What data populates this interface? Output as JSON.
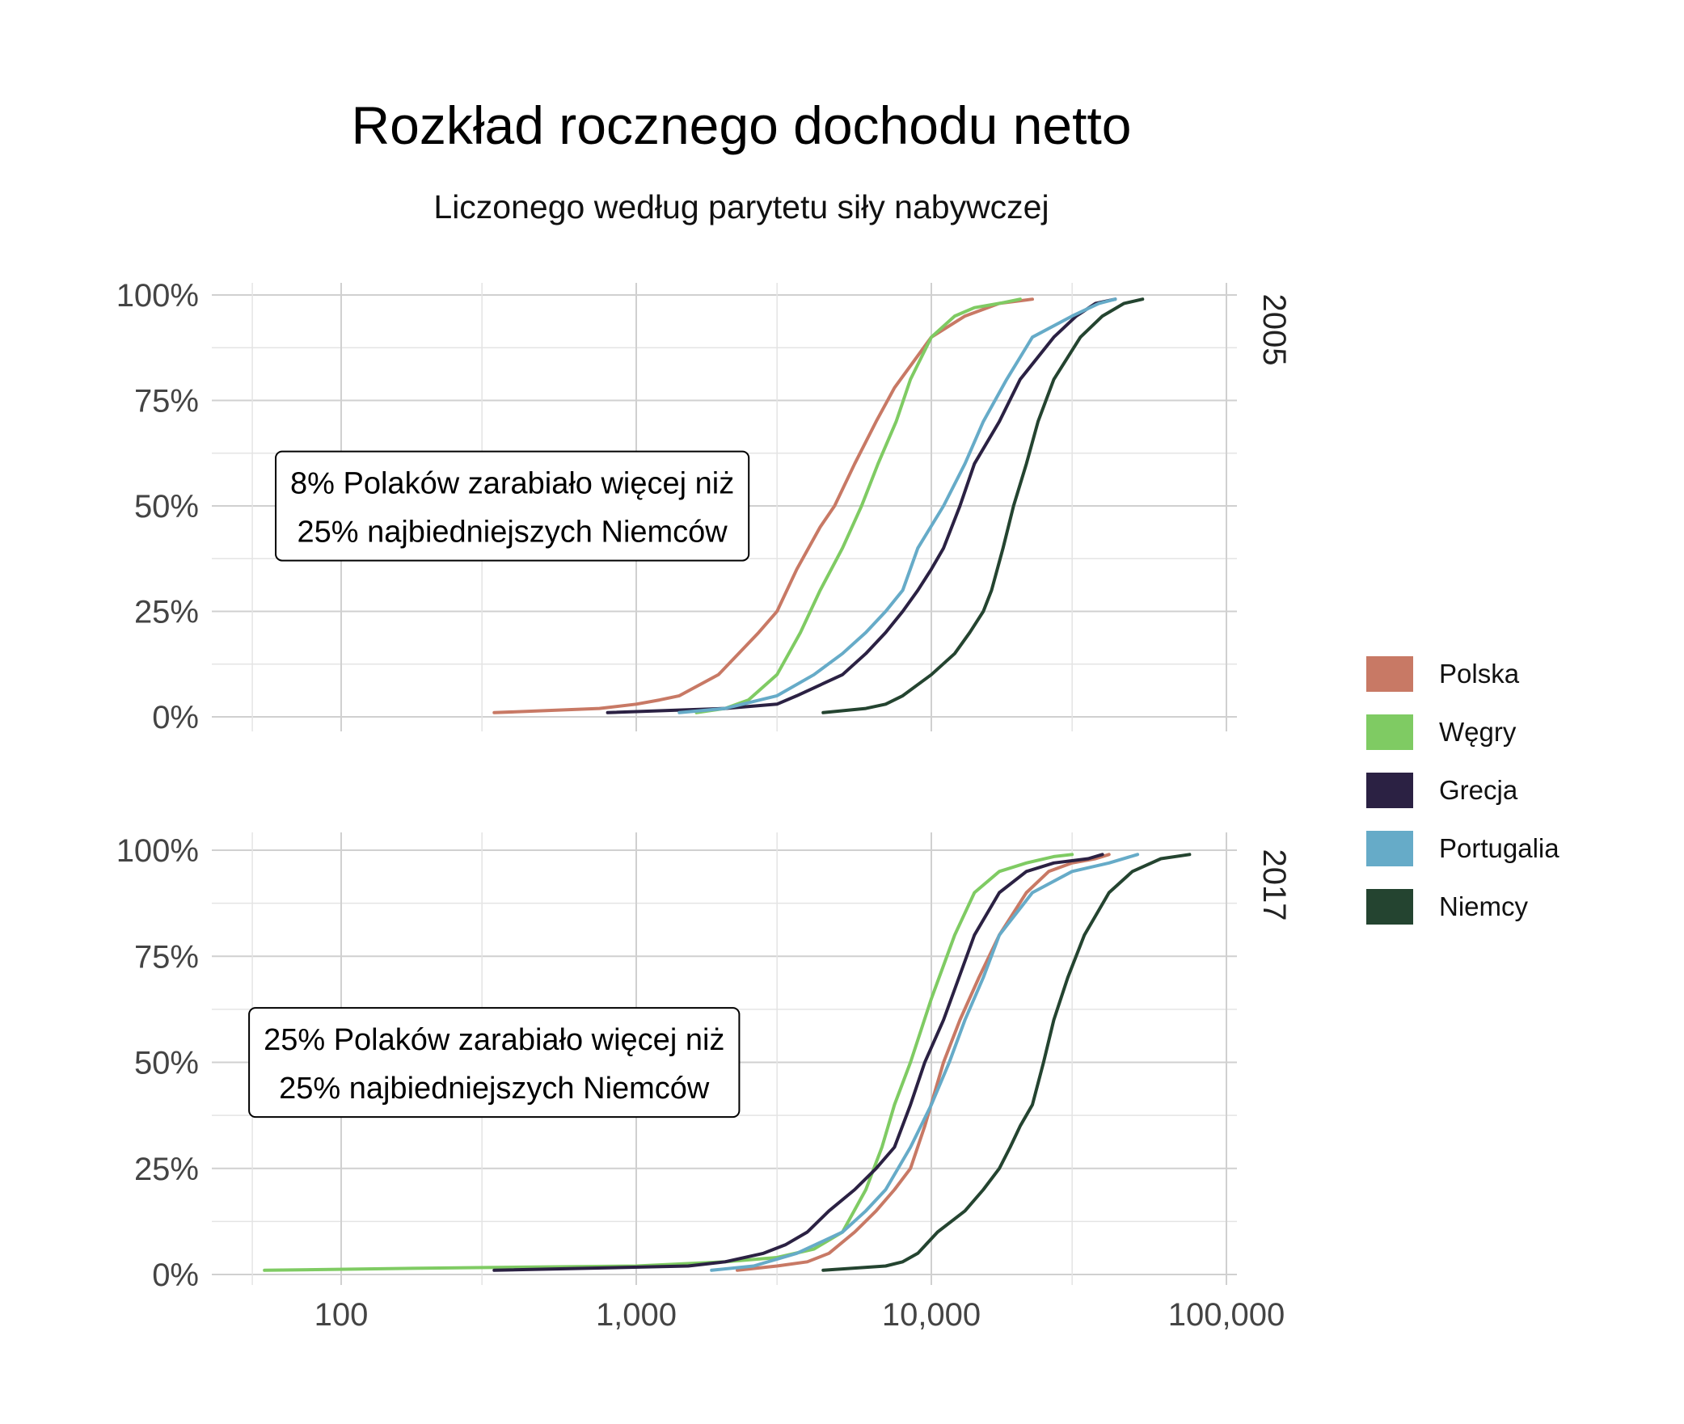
{
  "chart_data": {
    "type": "line",
    "title": "Rozkład rocznego dochodu netto",
    "subtitle": "Liczonego według parytetu siły nabywczej",
    "xlabel": "",
    "ylabel": "",
    "x_scale": "log",
    "x_range": [
      40,
      110000
    ],
    "y_range": [
      0,
      100
    ],
    "x_ticks": [
      "100",
      "1,000",
      "10,000",
      "100,000"
    ],
    "x_tick_values": [
      100,
      1000,
      10000,
      100000
    ],
    "y_ticks": [
      "0%",
      "25%",
      "50%",
      "75%",
      "100%"
    ],
    "y_tick_values": [
      0,
      25,
      50,
      75,
      100
    ],
    "grid": true,
    "legend_position": "right",
    "legend": [
      {
        "name": "Polska",
        "color": "#c87965"
      },
      {
        "name": "Węgry",
        "color": "#7fcb63"
      },
      {
        "name": "Grecja",
        "color": "#2b2143"
      },
      {
        "name": "Portugalia",
        "color": "#66abc8"
      },
      {
        "name": "Niemcy",
        "color": "#244430"
      }
    ],
    "panels": [
      {
        "label": "2005",
        "annotation": [
          "8% Polaków zarabiało więcej niż",
          "25% najbiedniejszych Niemców"
        ],
        "annotation_anchor": {
          "x": 380,
          "y": 49.5
        },
        "series": [
          {
            "name": "Polska",
            "points": [
              [
                330,
                1
              ],
              [
                750,
                2
              ],
              [
                1000,
                3
              ],
              [
                1200,
                4
              ],
              [
                1400,
                5
              ],
              [
                1900,
                10
              ],
              [
                2600,
                20
              ],
              [
                3000,
                25
              ],
              [
                3500,
                35
              ],
              [
                4200,
                45
              ],
              [
                4700,
                50
              ],
              [
                5500,
                60
              ],
              [
                6500,
                70
              ],
              [
                7500,
                78
              ],
              [
                10000,
                90
              ],
              [
                13000,
                95
              ],
              [
                17000,
                98
              ],
              [
                22000,
                99
              ]
            ]
          },
          {
            "name": "Węgry",
            "points": [
              [
                1600,
                1
              ],
              [
                2000,
                2
              ],
              [
                2400,
                4
              ],
              [
                3000,
                10
              ],
              [
                3600,
                20
              ],
              [
                4200,
                30
              ],
              [
                5000,
                40
              ],
              [
                5800,
                50
              ],
              [
                6600,
                60
              ],
              [
                7600,
                70
              ],
              [
                8500,
                80
              ],
              [
                10000,
                90
              ],
              [
                12000,
                95
              ],
              [
                14000,
                97
              ],
              [
                17000,
                98
              ],
              [
                20000,
                99
              ]
            ]
          },
          {
            "name": "Grecja",
            "points": [
              [
                800,
                1
              ],
              [
                2000,
                2
              ],
              [
                3000,
                3
              ],
              [
                3500,
                5
              ],
              [
                5000,
                10
              ],
              [
                6000,
                15
              ],
              [
                7000,
                20
              ],
              [
                8000,
                25
              ],
              [
                9000,
                30
              ],
              [
                10000,
                35
              ],
              [
                11000,
                40
              ],
              [
                12500,
                50
              ],
              [
                14000,
                60
              ],
              [
                17000,
                70
              ],
              [
                20000,
                80
              ],
              [
                26000,
                90
              ],
              [
                31000,
                95
              ],
              [
                36000,
                98
              ],
              [
                42000,
                99
              ]
            ]
          },
          {
            "name": "Portugalia",
            "points": [
              [
                1400,
                1
              ],
              [
                2000,
                2
              ],
              [
                3000,
                5
              ],
              [
                4000,
                10
              ],
              [
                5000,
                15
              ],
              [
                6000,
                20
              ],
              [
                7000,
                25
              ],
              [
                8000,
                30
              ],
              [
                9000,
                40
              ],
              [
                11000,
                50
              ],
              [
                13000,
                60
              ],
              [
                15000,
                70
              ],
              [
                18000,
                80
              ],
              [
                22000,
                90
              ],
              [
                30000,
                95
              ],
              [
                37000,
                98
              ],
              [
                42000,
                99
              ]
            ]
          },
          {
            "name": "Niemcy",
            "points": [
              [
                4300,
                1
              ],
              [
                6000,
                2
              ],
              [
                7000,
                3
              ],
              [
                8000,
                5
              ],
              [
                10000,
                10
              ],
              [
                12000,
                15
              ],
              [
                13500,
                20
              ],
              [
                15000,
                25
              ],
              [
                16000,
                30
              ],
              [
                17500,
                40
              ],
              [
                19000,
                50
              ],
              [
                21000,
                60
              ],
              [
                23000,
                70
              ],
              [
                26000,
                80
              ],
              [
                32000,
                90
              ],
              [
                38000,
                95
              ],
              [
                45000,
                98
              ],
              [
                52000,
                99
              ]
            ]
          }
        ]
      },
      {
        "label": "2017",
        "annotation": [
          "25% Polaków zarabiało więcej niż",
          "25% najbiedniejszych Niemców"
        ],
        "annotation_anchor": {
          "x": 330,
          "y": 49.5
        },
        "series": [
          {
            "name": "Polska",
            "points": [
              [
                2200,
                1
              ],
              [
                3000,
                2
              ],
              [
                3800,
                3
              ],
              [
                4500,
                5
              ],
              [
                5500,
                10
              ],
              [
                6500,
                15
              ],
              [
                7500,
                20
              ],
              [
                8500,
                25
              ],
              [
                9500,
                35
              ],
              [
                11000,
                50
              ],
              [
                12500,
                60
              ],
              [
                14500,
                70
              ],
              [
                17000,
                80
              ],
              [
                21000,
                90
              ],
              [
                25000,
                95
              ],
              [
                30000,
                97
              ],
              [
                36000,
                98
              ],
              [
                40000,
                99
              ]
            ]
          },
          {
            "name": "Węgry",
            "points": [
              [
                55,
                1
              ],
              [
                200,
                1.5
              ],
              [
                1000,
                2
              ],
              [
                2000,
                3
              ],
              [
                3000,
                4
              ],
              [
                4000,
                6
              ],
              [
                5000,
                10
              ],
              [
                6000,
                20
              ],
              [
                6800,
                30
              ],
              [
                7500,
                40
              ],
              [
                8500,
                50
              ],
              [
                10000,
                65
              ],
              [
                12000,
                80
              ],
              [
                14000,
                90
              ],
              [
                17000,
                95
              ],
              [
                21000,
                97
              ],
              [
                26000,
                98.5
              ],
              [
                30000,
                99
              ]
            ]
          },
          {
            "name": "Grecja",
            "points": [
              [
                330,
                1
              ],
              [
                1500,
                2
              ],
              [
                2000,
                3
              ],
              [
                2700,
                5
              ],
              [
                3200,
                7
              ],
              [
                3800,
                10
              ],
              [
                4500,
                15
              ],
              [
                5500,
                20
              ],
              [
                6500,
                25
              ],
              [
                7500,
                30
              ],
              [
                8500,
                40
              ],
              [
                9500,
                50
              ],
              [
                11000,
                60
              ],
              [
                14000,
                80
              ],
              [
                17000,
                90
              ],
              [
                21000,
                95
              ],
              [
                26000,
                97
              ],
              [
                34000,
                98
              ],
              [
                38000,
                99
              ]
            ]
          },
          {
            "name": "Portugalia",
            "points": [
              [
                1800,
                1
              ],
              [
                2500,
                2
              ],
              [
                3500,
                5
              ],
              [
                5000,
                10
              ],
              [
                6000,
                15
              ],
              [
                7000,
                20
              ],
              [
                8500,
                30
              ],
              [
                10000,
                40
              ],
              [
                11500,
                50
              ],
              [
                13000,
                60
              ],
              [
                15000,
                70
              ],
              [
                17000,
                80
              ],
              [
                22000,
                90
              ],
              [
                30000,
                95
              ],
              [
                40000,
                97
              ],
              [
                50000,
                99
              ]
            ]
          },
          {
            "name": "Niemcy",
            "points": [
              [
                4300,
                1
              ],
              [
                7000,
                2
              ],
              [
                8000,
                3
              ],
              [
                9000,
                5
              ],
              [
                10500,
                10
              ],
              [
                13000,
                15
              ],
              [
                15000,
                20
              ],
              [
                17000,
                25
              ],
              [
                18500,
                30
              ],
              [
                20000,
                35
              ],
              [
                22000,
                40
              ],
              [
                24000,
                50
              ],
              [
                26000,
                60
              ],
              [
                29000,
                70
              ],
              [
                33000,
                80
              ],
              [
                40000,
                90
              ],
              [
                48000,
                95
              ],
              [
                60000,
                98
              ],
              [
                75000,
                99
              ]
            ]
          }
        ]
      }
    ]
  }
}
